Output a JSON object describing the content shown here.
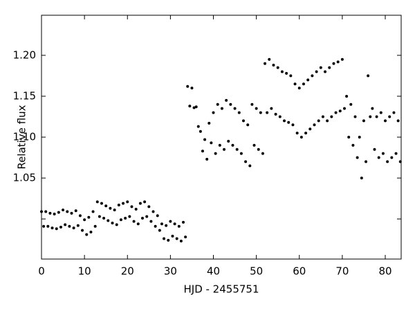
{
  "chart_data": {
    "type": "scatter",
    "xlabel": "HJD - 2455751",
    "ylabel": "Relative flux",
    "xlim": [
      0,
      83.7
    ],
    "ylim": [
      0.951,
      1.249
    ],
    "xticks": [
      0,
      10,
      20,
      30,
      40,
      50,
      60,
      70,
      80
    ],
    "yticks": [
      {
        "value": 1.0,
        "label": null
      },
      {
        "value": 1.05,
        "label": "1.05"
      },
      {
        "value": 1.1,
        "label": "1.10"
      },
      {
        "value": 1.15,
        "label": "1.15"
      },
      {
        "value": 1.2,
        "label": "1.20"
      }
    ],
    "color": "#000000",
    "x": [
      0,
      0.5,
      1,
      1.5,
      2,
      2.5,
      3,
      3.5,
      4,
      4.5,
      5,
      5.5,
      6,
      6.5,
      7,
      7.5,
      8,
      8.5,
      9,
      9.5,
      10,
      10.5,
      11,
      11.5,
      12,
      12.5,
      13,
      13.5,
      14,
      14.5,
      15,
      15.5,
      16,
      16.5,
      17,
      17.5,
      18,
      18.5,
      19,
      19.5,
      20,
      20.5,
      21,
      21.5,
      22,
      22.5,
      23,
      23.5,
      24,
      24.5,
      25,
      25.5,
      26,
      26.5,
      27,
      27.5,
      28,
      28.5,
      29,
      29.5,
      30,
      30.5,
      31,
      31.5,
      32,
      32.5,
      33,
      33.5,
      34,
      34.5,
      35,
      35.5,
      36,
      36.5,
      37,
      37.5,
      38,
      38.5,
      39,
      39.5,
      40,
      40.5,
      41,
      41.5,
      42,
      42.5,
      43,
      43.5,
      44,
      44.5,
      45,
      45.5,
      46,
      46.5,
      47,
      47.5,
      48,
      48.5,
      49,
      49.5,
      50,
      50.5,
      51,
      51.5,
      52,
      52.5,
      53,
      53.5,
      54,
      54.5,
      55,
      55.5,
      56,
      56.5,
      57,
      57.5,
      58,
      58.5,
      59,
      59.5,
      60,
      60.5,
      61,
      61.5,
      62,
      62.5,
      63,
      63.5,
      64,
      64.5,
      65,
      65.5,
      66,
      66.5,
      67,
      67.5,
      68,
      68.5,
      69,
      69.5,
      70,
      70.5,
      71,
      71.5,
      72,
      72.5,
      73,
      73.5,
      74,
      74.5,
      75,
      75.5,
      76,
      76.5,
      77,
      77.5,
      78,
      78.5,
      79,
      79.5,
      80,
      80.5,
      81,
      81.5,
      82,
      82.5,
      83,
      83.5
    ],
    "y": [
      1.009,
      0.991,
      1.009,
      0.991,
      1.007,
      0.989,
      1.006,
      0.988,
      1.008,
      0.99,
      1.011,
      0.993,
      1.009,
      0.991,
      1.007,
      0.989,
      1.01,
      0.992,
      1.004,
      0.986,
      0.999,
      0.981,
      1.002,
      0.984,
      1.009,
      0.991,
      1.021,
      1.003,
      1.019,
      1.001,
      1.016,
      0.998,
      1.013,
      0.995,
      1.011,
      0.993,
      1.017,
      0.999,
      1.019,
      1.001,
      1.021,
      1.003,
      1.015,
      0.997,
      1.012,
      0.994,
      1.019,
      1.001,
      1.021,
      1.003,
      1.015,
      0.997,
      1.009,
      0.991,
      1.004,
      0.986,
      0.994,
      0.976,
      0.992,
      0.974,
      0.997,
      0.979,
      0.994,
      0.976,
      0.991,
      0.973,
      0.996,
      0.978,
      1.162,
      1.138,
      1.16,
      1.136,
      1.137,
      1.113,
      1.107,
      1.083,
      1.097,
      1.073,
      1.117,
      1.093,
      1.13,
      1.08,
      1.14,
      1.09,
      1.135,
      1.085,
      1.145,
      1.095,
      1.14,
      1.09,
      1.135,
      1.085,
      1.13,
      1.08,
      1.12,
      1.07,
      1.115,
      1.065,
      1.14,
      1.09,
      1.135,
      1.085,
      1.13,
      1.08,
      1.19,
      1.13,
      1.195,
      1.135,
      1.188,
      1.128,
      1.185,
      1.125,
      1.18,
      1.12,
      1.178,
      1.118,
      1.175,
      1.115,
      1.165,
      1.105,
      1.16,
      1.1,
      1.165,
      1.105,
      1.17,
      1.11,
      1.175,
      1.115,
      1.18,
      1.12,
      1.185,
      1.125,
      1.18,
      1.12,
      1.185,
      1.125,
      1.19,
      1.13,
      1.192,
      1.132,
      1.195,
      1.135,
      1.15,
      1.1,
      1.14,
      1.09,
      1.125,
      1.075,
      1.1,
      1.05,
      1.12,
      1.07,
      1.175,
      1.125,
      1.135,
      1.085,
      1.125,
      1.075,
      1.13,
      1.08,
      1.12,
      1.07,
      1.125,
      1.075,
      1.13,
      1.08,
      1.12,
      1.07
    ]
  }
}
